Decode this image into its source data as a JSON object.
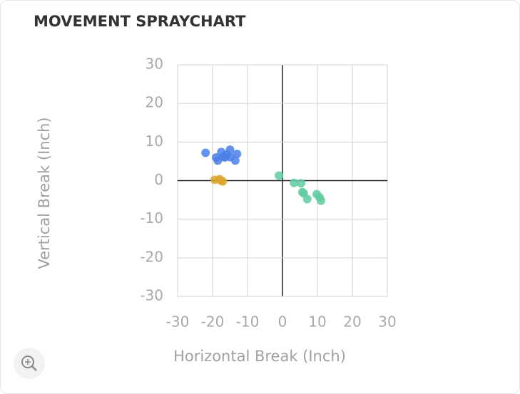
{
  "chart_data": {
    "type": "scatter",
    "title": "MOVEMENT SPRAYCHART",
    "x_label": "Horizontal Break (Inch)",
    "y_label": "Vertical Break (Inch)",
    "xlim": [
      -30,
      30
    ],
    "ylim": [
      -30,
      30
    ],
    "xticks": [
      -30,
      -20,
      -10,
      0,
      10,
      20,
      30
    ],
    "yticks": [
      -30,
      -20,
      -10,
      0,
      10,
      20,
      30
    ],
    "grid": true,
    "series": [
      {
        "color": "#4a7fe8",
        "x": [
          -22,
          -19,
          -18.5,
          -17.5,
          -16.5,
          -16,
          -15,
          -15,
          -13.5,
          -13,
          -17
        ],
        "values": [
          7.2,
          6,
          5.2,
          7.4,
          6,
          6.7,
          8,
          6.1,
          5.2,
          6.9,
          6.2
        ]
      },
      {
        "color": "#d9a62e",
        "x": [
          -19.4,
          -18,
          -17.6,
          -17.1
        ],
        "values": [
          0.2,
          0.4,
          0,
          -0.2
        ]
      },
      {
        "color": "#5ecb9f",
        "x": [
          -1,
          3.3,
          5.3,
          5.7,
          6.1,
          7.1,
          9.8,
          10.6,
          11
        ],
        "values": [
          1.3,
          -0.6,
          -0.7,
          -3,
          -3.3,
          -4.8,
          -3.5,
          -4.3,
          -5.2
        ]
      }
    ]
  }
}
